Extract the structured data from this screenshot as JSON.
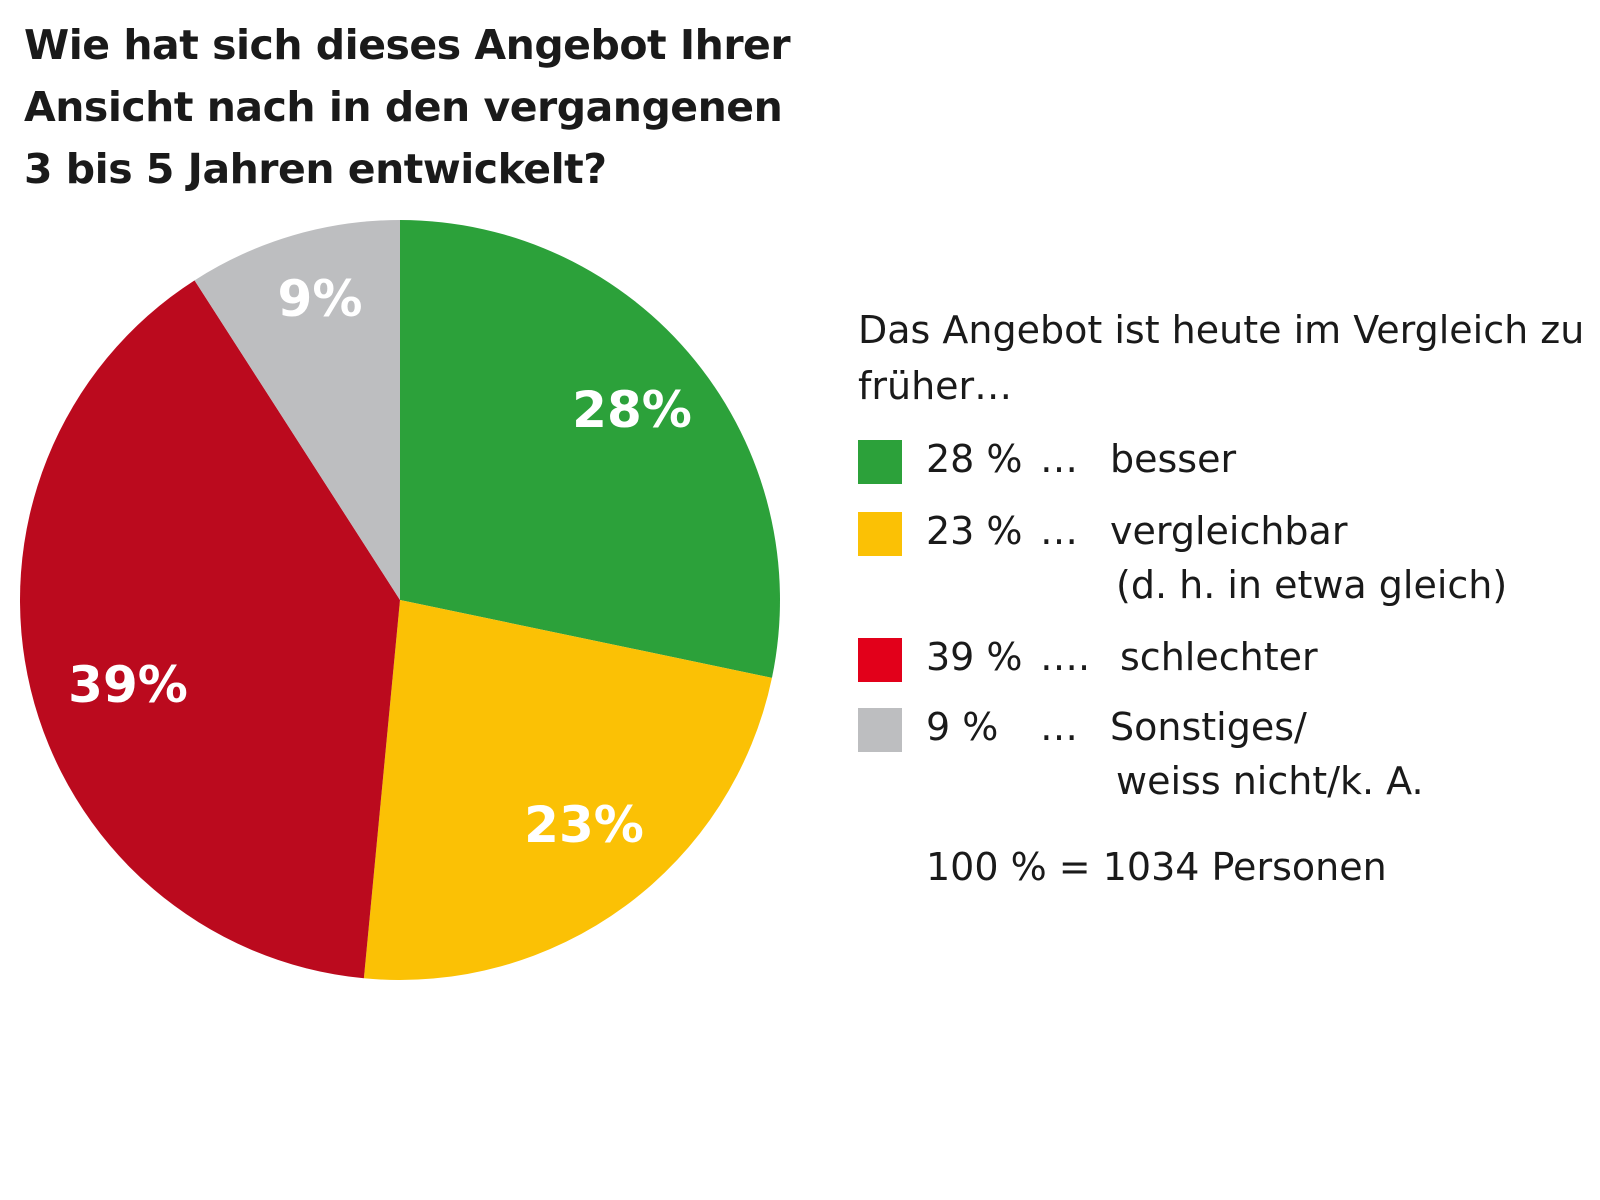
{
  "chart_data": {
    "type": "pie",
    "title_lines": [
      "Wie hat sich dieses Angebot Ihrer",
      "Ansicht nach in den vergangenen",
      "3 bis 5 Jahren entwickelt?"
    ],
    "slices": [
      {
        "value": 28,
        "label": "28%",
        "color": "#2ca13a"
      },
      {
        "value": 23,
        "label": "23%",
        "color": "#fbc105"
      },
      {
        "value": 39,
        "label": "39%",
        "color": "#bb0a1e"
      },
      {
        "value": 9,
        "label": "9%",
        "color": "#bdbec0"
      }
    ],
    "legend": {
      "title_lines": [
        "Das Angebot ist heute im Vergleich zu",
        "früher…"
      ],
      "items": [
        {
          "pct": "28 %",
          "dots": "…",
          "text": [
            "besser"
          ],
          "color": "#2ca13a"
        },
        {
          "pct": "23 %",
          "dots": "…",
          "text": [
            "vergleichbar",
            "(d. h. in etwa gleich)"
          ],
          "color": "#fbc105"
        },
        {
          "pct": "39 %",
          "dots": "….",
          "text": [
            "schlechter"
          ],
          "color": "#e2001a"
        },
        {
          "pct": "9 %",
          "dots": "…",
          "text": [
            "Sonstiges/",
            "weiss nicht/k. A."
          ],
          "color": "#bdbec0"
        }
      ]
    },
    "note": "100 % = 1034 Personen"
  }
}
